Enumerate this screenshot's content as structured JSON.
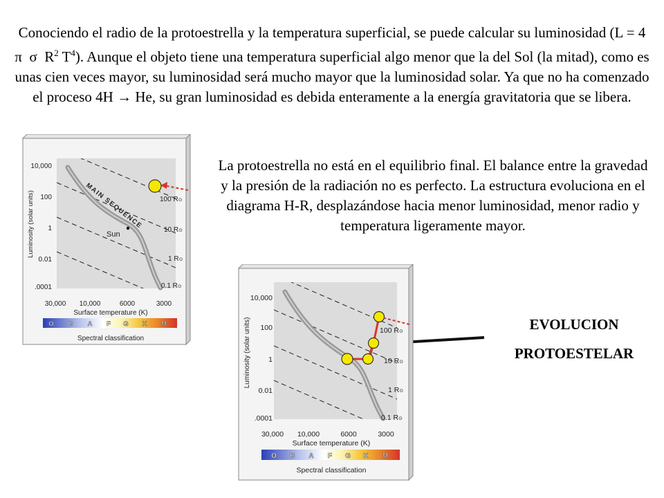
{
  "slide": {
    "top_paragraph": {
      "before_l": "Conociendo el radio de la protoestrella y la temperatura superficial, se puede calcular su luminosidad (L = 4 ",
      "pi": "π",
      "sigma": "σ",
      "r": "R",
      "r_exp": "2",
      "t": "T",
      "t_exp": "4",
      "after_l": "). Aunque el objeto tiene una temperatura superficial algo menor que la del Sol (la mitad), como es unas cien veces mayor, su luminosidad será mucho mayor que la luminosidad solar. Ya que no ha comenzado el proceso 4H ",
      "arrow": "→",
      "after_arrow": " He, su gran luminosidad es debida enteramente a la energía gravitatoria que se libera."
    },
    "right_paragraph": "La protoestrella no está en el equilibrio final. El balance entre la gravedad y la presión de la radiación no es perfecto. La estructura evoluciona en el diagrama H-R, desplazándose hacia menor luminosidad, menor radio y temperatura ligeramente mayor.",
    "evolution_label": {
      "line1": "EVOLUCION",
      "line2": "PROTOESTELAR"
    }
  },
  "hr_diagram": {
    "y_axis_label": "Luminosity (solar units)",
    "y_ticks": [
      "10,000",
      "100",
      "1",
      "0.01",
      ".0001"
    ],
    "x_axis_label": "Surface temperature (K)",
    "x_ticks": [
      "30,000",
      "10,000",
      "6000",
      "3000"
    ],
    "radius_lines": [
      {
        "value": "100 R",
        "sym": "⊙"
      },
      {
        "value": "10 R",
        "sym": "⊙"
      },
      {
        "value": "1 R",
        "sym": "⊙"
      },
      {
        "value": "0.1 R",
        "sym": "⊙"
      }
    ],
    "main_sequence_label": "MAIN SEQUENCE",
    "sun_label": "Sun",
    "spectral_classes": [
      "O",
      "B",
      "A",
      "F",
      "G",
      "K",
      "M"
    ],
    "spectral_label": "Spectral classification",
    "colors": {
      "plot_bg": "#dcdcdc",
      "marker_fill": "#f5e800",
      "track": "#d9342b",
      "arrow": "#111111"
    }
  }
}
